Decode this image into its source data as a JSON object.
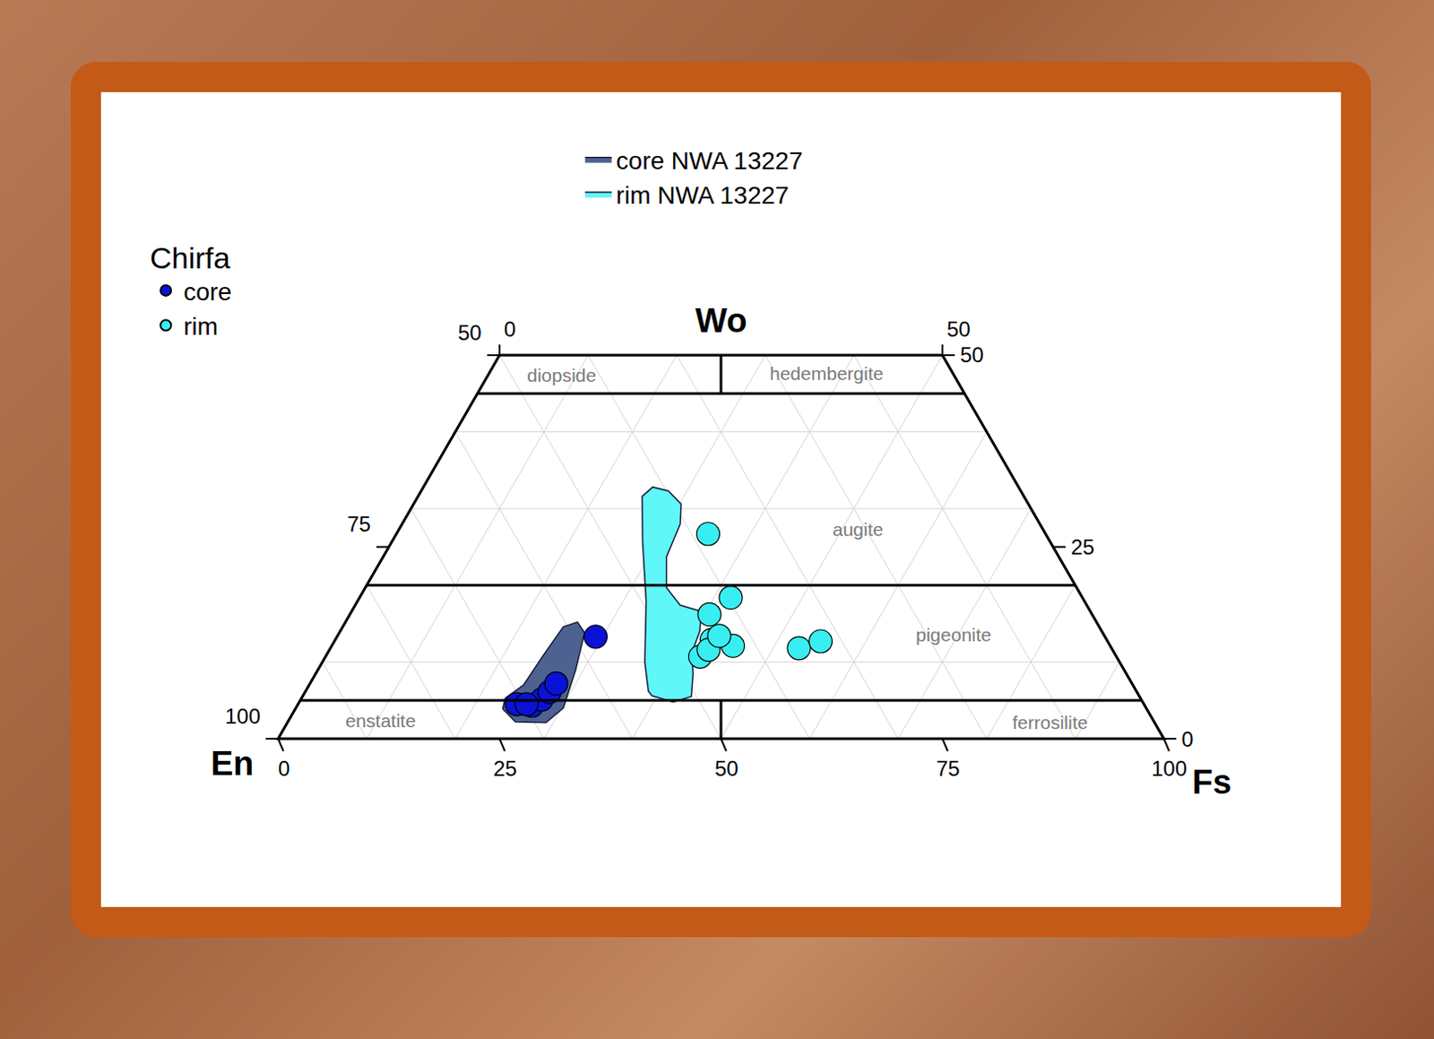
{
  "chart_data": {
    "type": "pyroxene_quadrilateral",
    "wolim": [
      0,
      50
    ],
    "grid": true,
    "legend": "top left",
    "legend_title": "Chirfa",
    "axes": {
      "Wo": {
        "label": "Wo",
        "ticks": [
          0,
          25,
          50
        ]
      },
      "En": {
        "label": "En",
        "ticks": [
          100,
          75,
          50
        ]
      },
      "Fs": {
        "label": "Fs",
        "ticks": [
          0,
          25,
          50,
          75,
          100
        ]
      },
      "Fs_top": {
        "ticks": [
          0,
          50
        ]
      }
    },
    "field_lines": [
      5,
      20,
      45
    ],
    "field_dividers": [
      [
        0,
        5
      ],
      [
        45,
        50
      ]
    ],
    "field_labels": [
      {
        "text": "diopside",
        "fs": 8.3,
        "wo": 47.4
      },
      {
        "text": "hedembergite",
        "fs": 38.1,
        "wo": 47.6
      },
      {
        "text": "augite",
        "fs": 51.8,
        "wo": 27.3
      },
      {
        "text": "pigeonite",
        "fs": 69.4,
        "wo": 13.6
      },
      {
        "text": "enstatite",
        "fs": 10.3,
        "wo": 2.4
      },
      {
        "text": "ferrosilite",
        "fs": 86.1,
        "wo": 2.1
      }
    ],
    "series": [
      {
        "name": "core NWA 13227",
        "type": "area",
        "color": "#4d6290",
        "fs": [
          23.4,
          23.0,
          24.2,
          24.5,
          24.9,
          26.2,
          27.7,
          29.1,
          30.2,
          29.2,
          25.7
        ],
        "wo": [
          3.9,
          5.3,
          7.0,
          10.8,
          14.6,
          15.2,
          13.8,
          9.0,
          4.0,
          2.1,
          2.2
        ]
      },
      {
        "name": "rim NWA 13227",
        "type": "area",
        "color": "#5ff7f7",
        "fs": [
          39.4,
          42.2,
          43.9,
          42.6,
          41.1,
          40.6,
          39.5,
          36.7,
          34.0,
          32.0,
          31.4,
          30.2,
          27.9,
          25.9,
          25.3,
          28.3,
          32.6,
          36.4,
          38.7
        ],
        "wo": [
          5.6,
          4.8,
          5.5,
          8.5,
          11.2,
          14.0,
          16.6,
          17.4,
          19.7,
          23.7,
          28.0,
          30.6,
          32.3,
          32.8,
          31.6,
          25.7,
          17.9,
          10.0,
          6.2
        ]
      },
      {
        "name": "core",
        "type": "scatter",
        "marker": "circle",
        "color": "#0a12d8",
        "fs": [
          24.7,
          26.5,
          27.2,
          27.6,
          27.8,
          25.8,
          29.2
        ],
        "wo": [
          4.5,
          4.3,
          5.1,
          6.1,
          7.2,
          4.5,
          13.3
        ]
      },
      {
        "name": "rim",
        "type": "scatter",
        "marker": "circle",
        "color": "#38eef0",
        "fs": [
          35.2,
          41.9,
          40.6,
          42.5,
          45.3,
          42.3,
          42.8,
          43.1,
          52.9,
          54.9
        ],
        "wo": [
          26.7,
          18.4,
          16.2,
          12.9,
          12.1,
          10.7,
          11.6,
          13.4,
          11.8,
          12.7
        ]
      }
    ]
  }
}
